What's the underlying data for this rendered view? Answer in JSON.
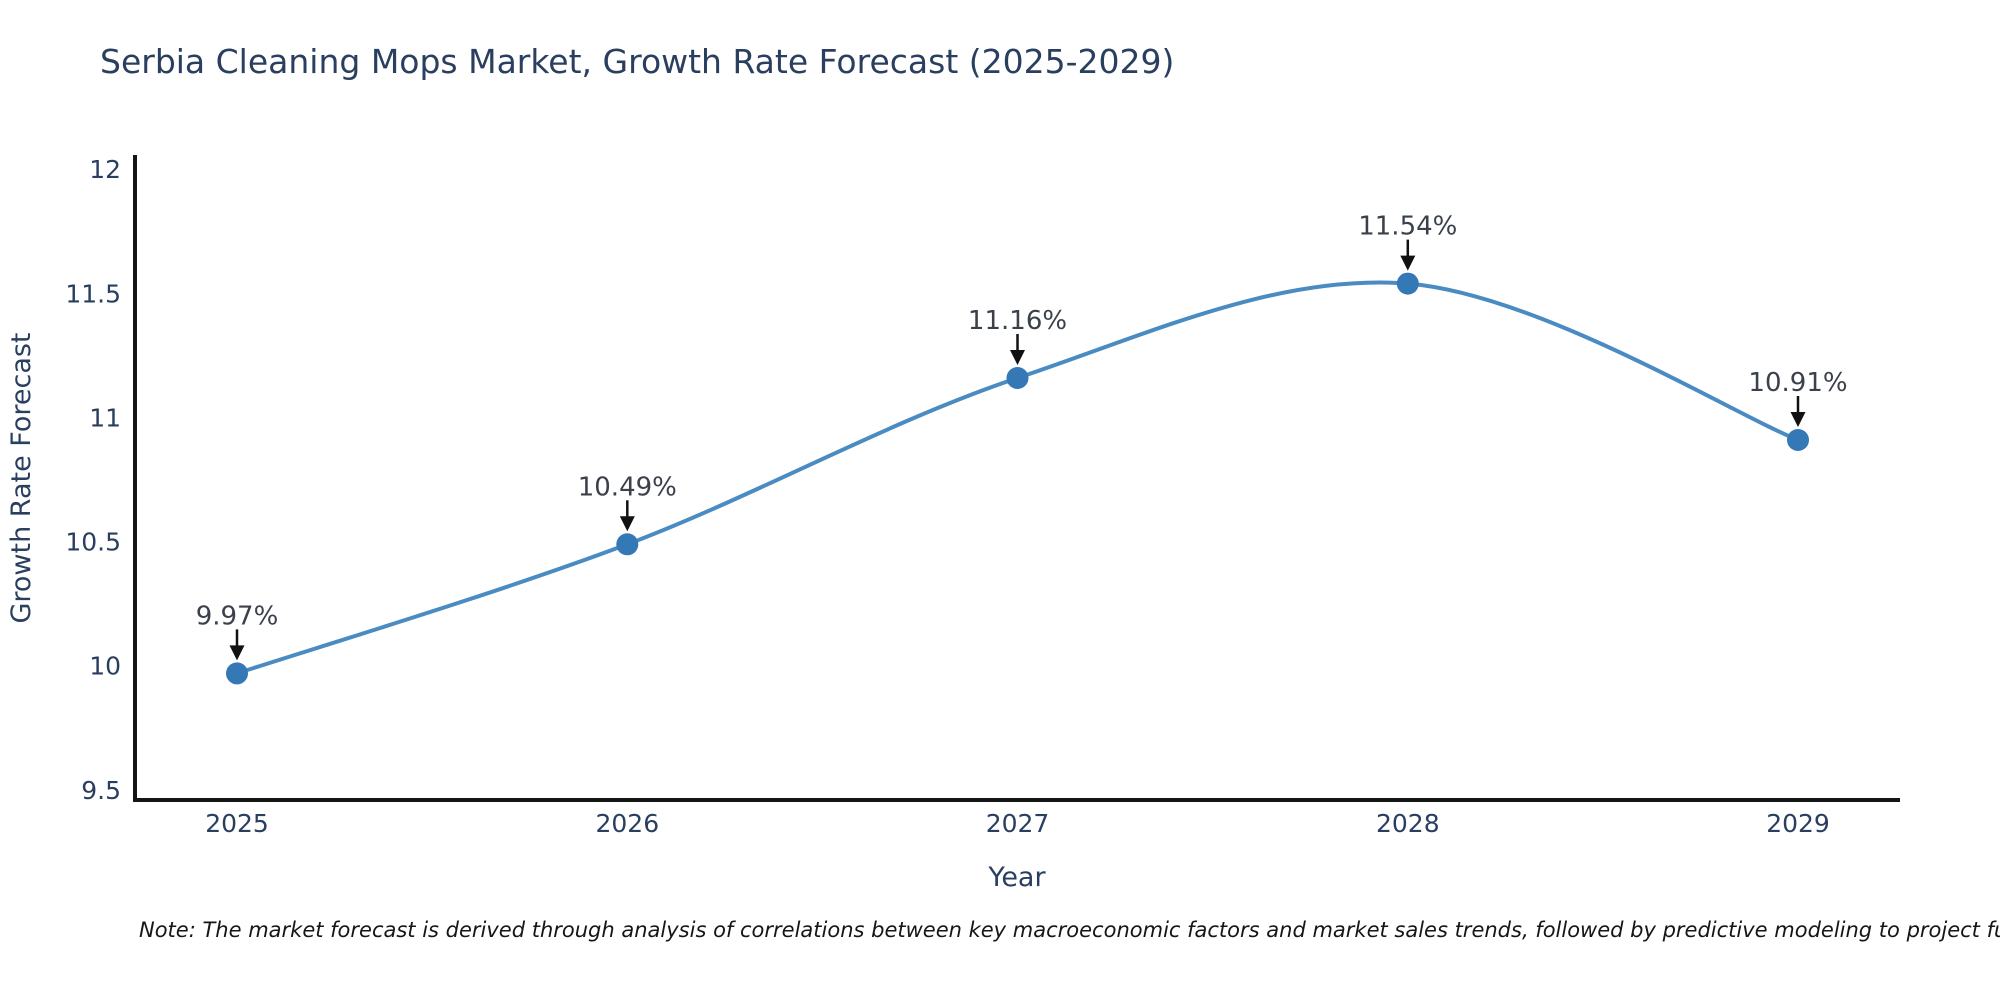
{
  "chart_data": {
    "type": "line",
    "title": "Serbia Cleaning Mops Market, Growth Rate Forecast (2025-2029)",
    "xlabel": "Year",
    "ylabel": "Growth Rate Forecast",
    "categories": [
      "2025",
      "2026",
      "2027",
      "2028",
      "2029"
    ],
    "values": [
      9.97,
      10.49,
      11.16,
      11.54,
      10.91
    ],
    "point_labels": [
      "9.97%",
      "10.49%",
      "11.16%",
      "11.54%",
      "10.91%"
    ],
    "yticks": [
      9.5,
      10,
      10.5,
      11,
      11.5,
      12
    ],
    "ytick_labels": [
      "9.5",
      "10",
      "10.5",
      "11",
      "11.5",
      "12"
    ],
    "ylim": [
      9.46,
      12.05
    ],
    "line_shape": "spline",
    "markers": true,
    "grid": false,
    "legend_position": "none",
    "annotation_style": "value labels with downward black arrows above each point",
    "colors": {
      "line": "#4a8bc2",
      "marker": "#3478b5",
      "axis": "#151515",
      "tick_text": "#2a3f5f",
      "title_text": "#2a3f5f",
      "annotation_text": "#3a414b",
      "arrow": "#111111",
      "background": "#ffffff"
    }
  },
  "note": {
    "text": "Note: The market forecast is derived through analysis of correlations between key macroeconomic factors and market sales trends, followed by predictive modeling to project future sal"
  }
}
